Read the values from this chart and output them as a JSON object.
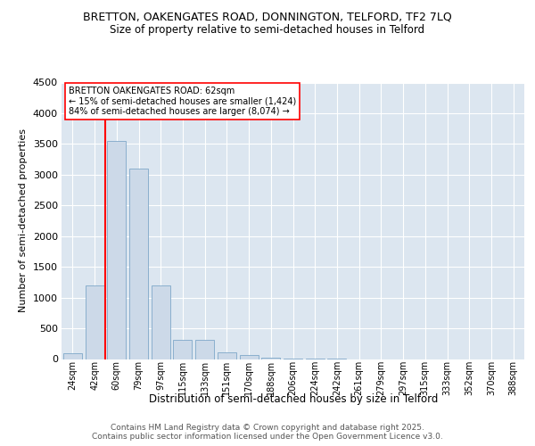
{
  "title": "BRETTON, OAKENGATES ROAD, DONNINGTON, TELFORD, TF2 7LQ",
  "subtitle": "Size of property relative to semi-detached houses in Telford",
  "xlabel": "Distribution of semi-detached houses by size in Telford",
  "ylabel": "Number of semi-detached properties",
  "categories": [
    "24sqm",
    "42sqm",
    "60sqm",
    "79sqm",
    "97sqm",
    "115sqm",
    "133sqm",
    "151sqm",
    "170sqm",
    "188sqm",
    "206sqm",
    "224sqm",
    "242sqm",
    "261sqm",
    "279sqm",
    "297sqm",
    "315sqm",
    "333sqm",
    "352sqm",
    "370sqm",
    "388sqm"
  ],
  "values": [
    100,
    1200,
    3550,
    3100,
    1200,
    310,
    310,
    110,
    60,
    20,
    5,
    2,
    1,
    0,
    0,
    0,
    0,
    0,
    0,
    0,
    0
  ],
  "bar_color": "#ccd9e8",
  "bar_edge_color": "#7fa8c9",
  "highlight_bin_index": 2,
  "annotation_title": "BRETTON OAKENGATES ROAD: 62sqm",
  "annotation_line1": "← 15% of semi-detached houses are smaller (1,424)",
  "annotation_line2": "84% of semi-detached houses are larger (8,074) →",
  "ylim_max": 4500,
  "yticks": [
    0,
    500,
    1000,
    1500,
    2000,
    2500,
    3000,
    3500,
    4000,
    4500
  ],
  "plot_bg": "#dce6f0",
  "footer1": "Contains HM Land Registry data © Crown copyright and database right 2025.",
  "footer2": "Contains public sector information licensed under the Open Government Licence v3.0."
}
